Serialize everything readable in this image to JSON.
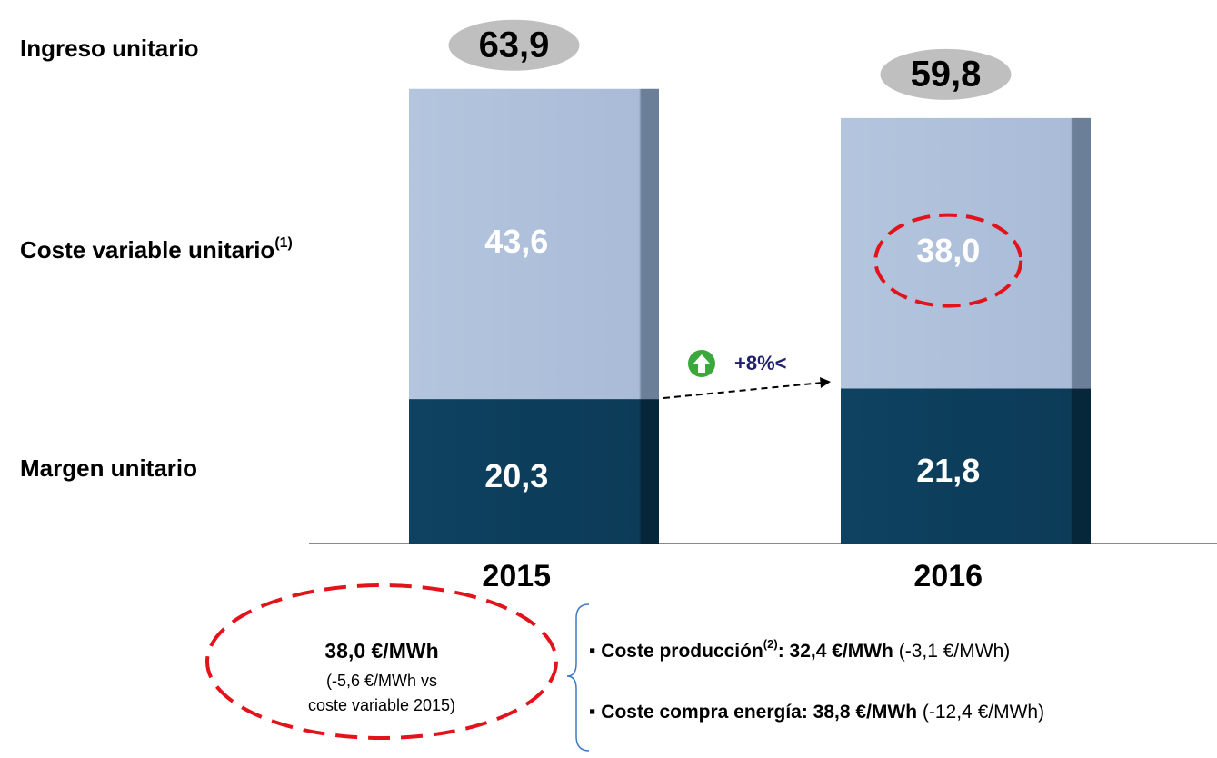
{
  "chart_data": {
    "type": "stacked_bar",
    "categories": [
      "2015",
      "2016"
    ],
    "total_name": "Ingreso unitario",
    "total_labels": [
      "63,9",
      "59,8"
    ],
    "series": [
      {
        "name": "Margen unitario",
        "color": "#0b3b57",
        "values": [
          20.3,
          21.8
        ],
        "value_labels": [
          "20,3",
          "21,8"
        ]
      },
      {
        "name": "Coste variable unitario",
        "name_note": "(1)",
        "color": "#a9bbd7",
        "values": [
          43.6,
          38.0
        ],
        "value_labels": [
          "43,6",
          "38,0"
        ]
      }
    ],
    "ylim": [
      0,
      70
    ],
    "change_annotation": "+8%<",
    "callout": {
      "title": "38,0 €/MWh",
      "lines": [
        "(-5,6 €/MWh vs",
        "coste variable 2015)"
      ]
    },
    "bullets": [
      {
        "label": "Coste producción",
        "note": "(2)",
        "value": ": 32,4 €/MWh",
        "change": " (-3,1 €/MWh)"
      },
      {
        "label": "Coste compra energía: 38,8 €/MWh",
        "change": " (-12,4 €/MWh)"
      }
    ]
  }
}
